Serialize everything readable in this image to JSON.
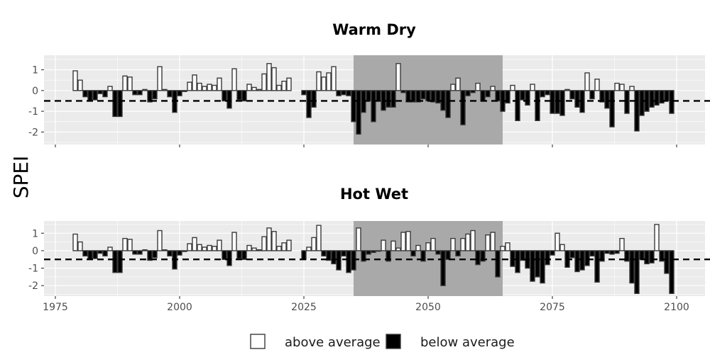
{
  "ylabel": "SPEI",
  "legend": {
    "position": "bottom",
    "items": [
      {
        "label": "above average",
        "fill": "#ffffff"
      },
      {
        "label": "below average",
        "fill": "#000000"
      }
    ]
  },
  "colors": {
    "panel_bg": "#ebebeb",
    "grid": "#ffffff",
    "highlight": "#a9a9a9",
    "bar_above": "#ffffff",
    "bar_below": "#000000",
    "bar_outline": "#3a3a3a",
    "threshold": "#000000"
  },
  "chart_data": [
    {
      "type": "bar",
      "title": "Warm Dry",
      "x_axis_ticks_shown": false,
      "xlim": [
        1975,
        2100
      ],
      "ylim": [
        -2.6,
        1.7
      ],
      "yticks": [
        1,
        0,
        -1,
        -2
      ],
      "xticks": [
        1975,
        2000,
        2025,
        2050,
        2075,
        2100
      ],
      "threshold": -0.5,
      "highlight": [
        2035,
        2065
      ],
      "grid": true,
      "x": [
        1979,
        1980,
        1981,
        1982,
        1983,
        1984,
        1985,
        1986,
        1987,
        1988,
        1989,
        1990,
        1991,
        1992,
        1993,
        1994,
        1995,
        1996,
        1997,
        1998,
        1999,
        2000,
        2001,
        2002,
        2003,
        2004,
        2005,
        2006,
        2007,
        2008,
        2009,
        2010,
        2011,
        2012,
        2013,
        2014,
        2015,
        2016,
        2017,
        2018,
        2019,
        2020,
        2021,
        2022,
        2025,
        2026,
        2027,
        2028,
        2029,
        2030,
        2031,
        2032,
        2033,
        2034,
        2035,
        2036,
        2037,
        2038,
        2039,
        2040,
        2041,
        2042,
        2043,
        2044,
        2045,
        2046,
        2047,
        2048,
        2049,
        2050,
        2051,
        2052,
        2053,
        2054,
        2055,
        2056,
        2057,
        2058,
        2059,
        2060,
        2061,
        2062,
        2063,
        2064,
        2065,
        2066,
        2067,
        2068,
        2069,
        2070,
        2071,
        2072,
        2073,
        2074,
        2075,
        2076,
        2077,
        2078,
        2079,
        2080,
        2081,
        2082,
        2083,
        2084,
        2085,
        2086,
        2087,
        2088,
        2089,
        2090,
        2091,
        2092,
        2093,
        2094,
        2095,
        2096,
        2097,
        2098,
        2099
      ],
      "values": [
        0.95,
        0.5,
        -0.3,
        -0.5,
        -0.45,
        -0.15,
        -0.3,
        0.2,
        -1.25,
        -1.25,
        0.7,
        0.65,
        -0.2,
        -0.2,
        0.05,
        -0.55,
        -0.4,
        1.15,
        0.05,
        -0.3,
        -1.05,
        -0.25,
        -0.05,
        0.4,
        0.75,
        0.35,
        0.2,
        0.3,
        0.25,
        0.6,
        -0.5,
        -0.85,
        1.05,
        -0.45,
        -0.5,
        0.3,
        0.15,
        0.05,
        0.8,
        1.3,
        1.1,
        0.25,
        0.45,
        0.6,
        -0.2,
        -1.3,
        -0.8,
        0.9,
        0.65,
        0.85,
        1.15,
        -0.25,
        -0.2,
        -0.25,
        -1.5,
        -2.1,
        -1.05,
        -0.5,
        -1.5,
        -0.5,
        -0.95,
        -0.8,
        -0.8,
        1.3,
        -0.1,
        -0.55,
        -0.55,
        -0.55,
        -0.4,
        -0.5,
        -0.55,
        -0.6,
        -0.95,
        -1.3,
        0.3,
        0.6,
        -1.65,
        -0.25,
        -0.1,
        0.35,
        -0.5,
        -0.3,
        0.2,
        -0.5,
        -1.0,
        -0.6,
        0.25,
        -1.45,
        -0.45,
        -0.7,
        0.3,
        -1.45,
        -0.3,
        -0.2,
        -1.1,
        -1.1,
        -1.2,
        0.05,
        -0.4,
        -0.8,
        -1.05,
        0.85,
        -0.4,
        0.55,
        -0.55,
        -0.85,
        -1.75,
        0.35,
        0.3,
        -1.1,
        0.2,
        -1.95,
        -1.2,
        -1.0,
        -0.8,
        -0.7,
        -0.6,
        -0.5,
        -1.1
      ]
    },
    {
      "type": "bar",
      "title": "Hot Wet",
      "x_axis_ticks_shown": true,
      "xlim": [
        1975,
        2100
      ],
      "ylim": [
        -2.6,
        1.7
      ],
      "yticks": [
        1,
        0,
        -1,
        -2
      ],
      "xticks": [
        1975,
        2000,
        2025,
        2050,
        2075,
        2100
      ],
      "threshold": -0.5,
      "highlight": [
        2035,
        2065
      ],
      "grid": true,
      "x": [
        1979,
        1980,
        1981,
        1982,
        1983,
        1984,
        1985,
        1986,
        1987,
        1988,
        1989,
        1990,
        1991,
        1992,
        1993,
        1994,
        1995,
        1996,
        1997,
        1998,
        1999,
        2000,
        2001,
        2002,
        2003,
        2004,
        2005,
        2006,
        2007,
        2008,
        2009,
        2010,
        2011,
        2012,
        2013,
        2014,
        2015,
        2016,
        2017,
        2018,
        2019,
        2020,
        2021,
        2022,
        2025,
        2026,
        2027,
        2028,
        2029,
        2030,
        2031,
        2032,
        2033,
        2034,
        2035,
        2036,
        2037,
        2038,
        2039,
        2040,
        2041,
        2042,
        2043,
        2044,
        2045,
        2046,
        2047,
        2048,
        2049,
        2050,
        2051,
        2052,
        2053,
        2054,
        2055,
        2056,
        2057,
        2058,
        2059,
        2060,
        2061,
        2062,
        2063,
        2064,
        2065,
        2066,
        2067,
        2068,
        2069,
        2070,
        2071,
        2072,
        2073,
        2074,
        2075,
        2076,
        2077,
        2078,
        2079,
        2080,
        2081,
        2082,
        2083,
        2084,
        2085,
        2086,
        2087,
        2088,
        2089,
        2090,
        2091,
        2092,
        2093,
        2094,
        2095,
        2096,
        2097,
        2098,
        2099
      ],
      "values": [
        0.95,
        0.5,
        -0.3,
        -0.5,
        -0.45,
        -0.15,
        -0.3,
        0.2,
        -1.25,
        -1.25,
        0.7,
        0.65,
        -0.2,
        -0.2,
        0.05,
        -0.55,
        -0.4,
        1.15,
        0.05,
        -0.3,
        -1.05,
        -0.25,
        -0.05,
        0.4,
        0.75,
        0.35,
        0.2,
        0.3,
        0.25,
        0.6,
        -0.5,
        -0.85,
        1.05,
        -0.45,
        -0.5,
        0.3,
        0.15,
        0.05,
        0.8,
        1.3,
        1.1,
        0.25,
        0.45,
        0.6,
        -0.5,
        0.2,
        0.75,
        1.45,
        -0.3,
        -0.55,
        -0.75,
        -1.1,
        -0.3,
        -1.25,
        -1.1,
        1.3,
        -0.6,
        -0.2,
        -0.1,
        0.0,
        0.6,
        -0.6,
        0.55,
        0.15,
        1.05,
        1.1,
        -0.3,
        0.3,
        -0.6,
        0.45,
        0.7,
        -0.2,
        -2.0,
        -0.5,
        0.7,
        -0.3,
        0.7,
        0.95,
        1.15,
        -0.8,
        -0.6,
        0.9,
        1.05,
        -1.5,
        0.25,
        0.45,
        -0.9,
        -1.25,
        -0.55,
        -1.0,
        -1.75,
        -1.5,
        -1.85,
        -0.8,
        -0.25,
        1.0,
        0.35,
        -0.95,
        -0.4,
        -1.2,
        -1.1,
        -0.85,
        -0.3,
        -1.8,
        -0.6,
        -0.15,
        -0.2,
        -0.15,
        0.7,
        -0.6,
        -1.85,
        -2.45,
        -0.5,
        -0.75,
        -0.7,
        1.5,
        -0.6,
        -1.3,
        -2.45
      ]
    }
  ]
}
